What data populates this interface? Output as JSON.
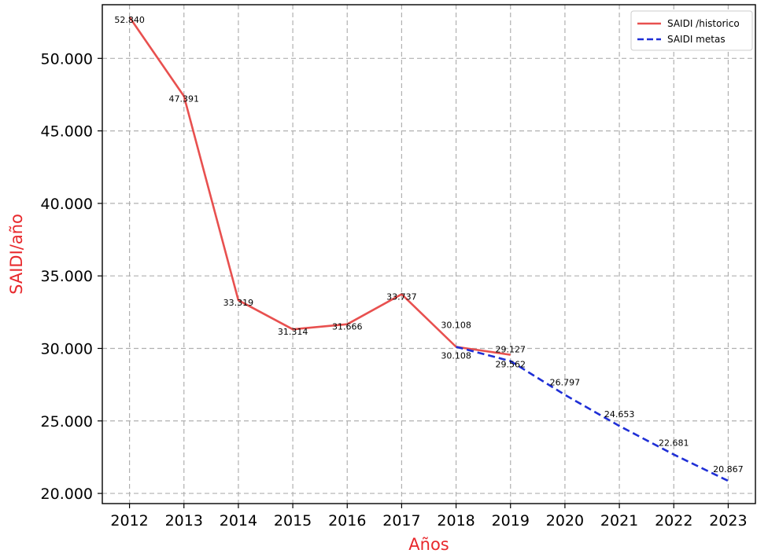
{
  "chart_data": {
    "type": "line",
    "xlabel": "Años",
    "ylabel": "SAIDI/año",
    "label_color": "#e8282c",
    "x": [
      2012,
      2013,
      2014,
      2015,
      2016,
      2017,
      2018,
      2019,
      2020,
      2021,
      2022,
      2023
    ],
    "xlim": [
      2011.5,
      2023.5
    ],
    "ylim": [
      19.3,
      53.7
    ],
    "yticks": [
      20,
      25,
      30,
      35,
      40,
      45,
      50
    ],
    "ytick_labels": [
      "20.000",
      "25.000",
      "30.000",
      "35.000",
      "40.000",
      "45.000",
      "50.000"
    ],
    "grid": true,
    "legend_position": "top-right",
    "series": [
      {
        "name": "SAIDI /historico",
        "color": "#e8504f",
        "style": "solid",
        "x": [
          2012,
          2013,
          2014,
          2015,
          2016,
          2017,
          2018,
          2019
        ],
        "values": [
          52.84,
          47.391,
          33.319,
          31.314,
          31.666,
          33.737,
          30.108,
          29.562
        ],
        "labels": [
          "52.840",
          "47.391",
          "33.319",
          "31.314",
          "31.666",
          "33.737",
          "30.108",
          "29.562"
        ]
      },
      {
        "name": "SAIDI metas",
        "color": "#1f2fd6",
        "style": "dashed",
        "x": [
          2018,
          2019,
          2020,
          2021,
          2022,
          2023
        ],
        "values": [
          30.108,
          29.127,
          26.797,
          24.653,
          22.681,
          20.867
        ],
        "labels": [
          "30.108",
          "29.127",
          "26.797",
          "24.653",
          "22.681",
          "20.867"
        ]
      }
    ]
  }
}
